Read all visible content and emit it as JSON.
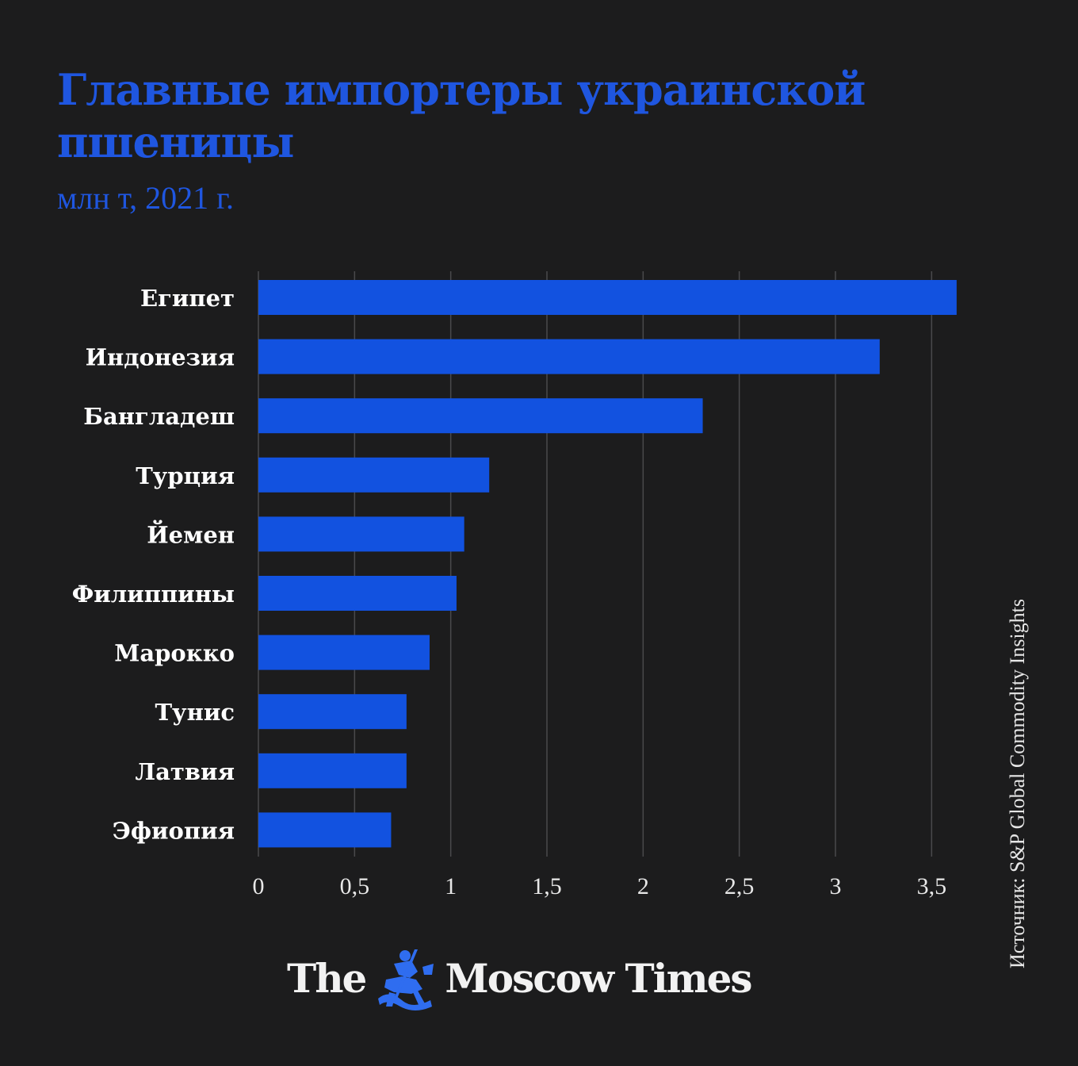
{
  "chart_data": {
    "type": "bar",
    "orientation": "horizontal",
    "title": "Главные импортеры украинской пшеницы",
    "subtitle": "млн т, 2021 г.",
    "categories": [
      "Египет",
      "Индонезия",
      "Бангладеш",
      "Турция",
      "Йемен",
      "Филиппины",
      "Марокко",
      "Тунис",
      "Латвия",
      "Эфиопия"
    ],
    "values": [
      3.63,
      3.23,
      2.31,
      1.2,
      1.07,
      1.03,
      0.89,
      0.77,
      0.77,
      0.69
    ],
    "xlim": [
      0,
      3.75
    ],
    "xticks": [
      0,
      0.5,
      1,
      1.5,
      2,
      2.5,
      3,
      3.5
    ],
    "xtick_labels": [
      "0",
      "0,5",
      "1",
      "1,5",
      "2",
      "2,5",
      "3",
      "3,5"
    ],
    "grid": "vertical",
    "bar_color": "#1252e0",
    "grid_color": "#4a4a4c"
  },
  "source": "Источник: S&P Global Commodity Insights",
  "logo": {
    "left_text": "The",
    "right_text": "Moscow Times",
    "emblem_icon": "st-george-emblem-icon"
  },
  "colors": {
    "background": "#1c1c1d",
    "title": "#1f56e0",
    "text": "#ffffff"
  }
}
